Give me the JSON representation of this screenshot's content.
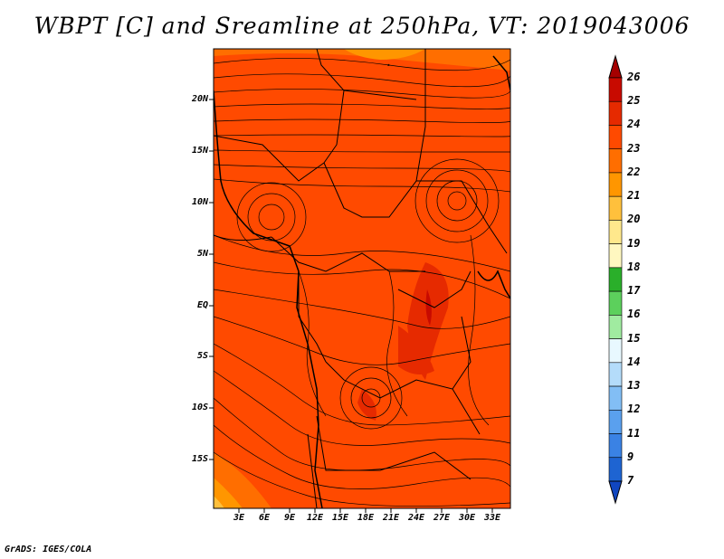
{
  "title": "WBPT [C] and Sreamline at 250hPa, VT: 2019043006",
  "credit": "GrADS: IGES/COLA",
  "lat_labels": [
    "20N",
    "15N",
    "10N",
    "5N",
    "EQ",
    "5S",
    "10S",
    "15S"
  ],
  "lon_labels": [
    "3E",
    "6E",
    "9E",
    "12E",
    "15E",
    "18E",
    "21E",
    "24E",
    "27E",
    "30E",
    "33E"
  ],
  "colorbar": {
    "labels": [
      "26",
      "25",
      "24",
      "23",
      "22",
      "21",
      "20",
      "19",
      "18",
      "17",
      "16",
      "15",
      "14",
      "13",
      "12",
      "11",
      "9",
      "7"
    ],
    "colors": [
      "#a50000",
      "#c80a00",
      "#e62a00",
      "#ff4a00",
      "#ff6e00",
      "#ff9600",
      "#ffc03c",
      "#ffe88c",
      "#fff7c0",
      "#2aaf2a",
      "#5cd05c",
      "#a0eba0",
      "#e8f8ff",
      "#b4dcfa",
      "#82bef5",
      "#5aa0ee",
      "#3a82e4",
      "#1e64d2",
      "#1046c0"
    ]
  }
}
